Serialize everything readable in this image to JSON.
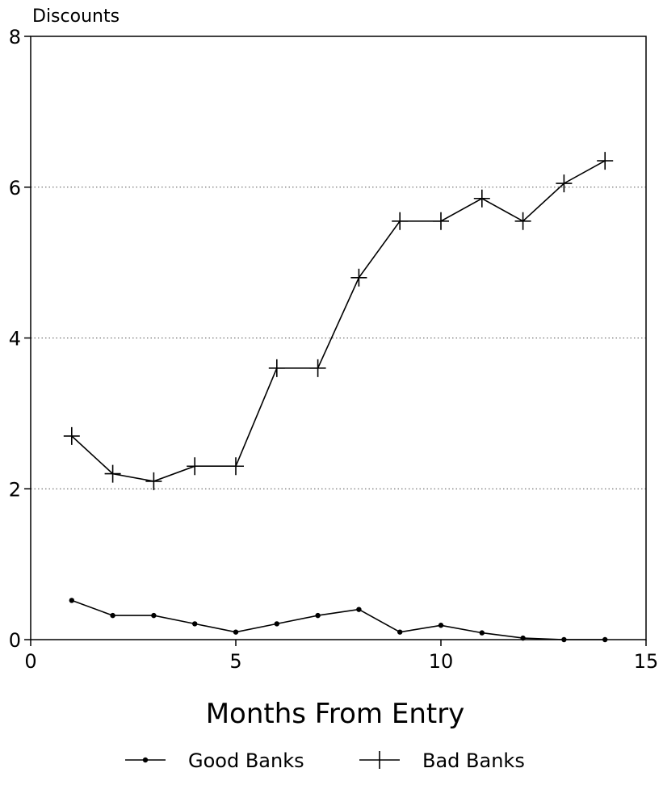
{
  "chart_data": {
    "type": "line",
    "title": "",
    "xlabel": "Months From Entry",
    "ylabel": "Discounts",
    "xlim": [
      0,
      15
    ],
    "ylim": [
      0,
      8
    ],
    "x_ticks": [
      "0",
      "5",
      "10",
      "15"
    ],
    "y_ticks": [
      "0",
      "2",
      "4",
      "6",
      "8"
    ],
    "grid": "horizontal dotted at 2, 4, 6",
    "legend_position": "bottom",
    "x": [
      1,
      2,
      3,
      4,
      5,
      6,
      7,
      8,
      9,
      10,
      11,
      12,
      13,
      14
    ],
    "series": [
      {
        "name": "Good Banks",
        "marker": "dot",
        "color": "#000000",
        "values": [
          0.52,
          0.32,
          0.32,
          0.21,
          0.1,
          0.21,
          0.32,
          0.4,
          0.1,
          0.19,
          0.09,
          0.02,
          0.0,
          0.0
        ]
      },
      {
        "name": "Bad Banks",
        "marker": "plus",
        "color": "#000000",
        "values": [
          2.7,
          2.2,
          2.1,
          2.3,
          2.3,
          3.6,
          3.6,
          4.8,
          5.55,
          5.55,
          5.85,
          5.55,
          6.05,
          6.35
        ]
      }
    ]
  }
}
